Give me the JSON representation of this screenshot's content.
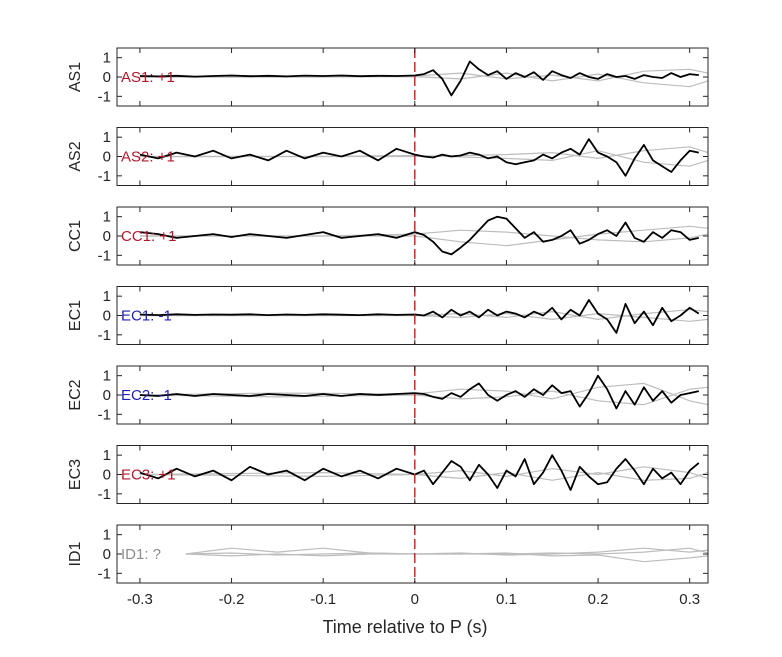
{
  "chart_data": {
    "type": "line",
    "xlabel": "Time relative to P (s)",
    "xlim": [
      -0.325,
      0.32
    ],
    "ylim": [
      -1.5,
      1.5
    ],
    "xticks": [
      -0.3,
      -0.2,
      -0.1,
      0,
      0.1,
      0.2,
      0.3
    ],
    "yticks": [
      -1,
      0,
      1
    ],
    "marker_x": 0,
    "colors": {
      "trace": "#000000",
      "ensemble": "#bdbdbd",
      "marker": "#d62728",
      "positive": "#b2182b",
      "negative": "#1f1fb4",
      "unknown": "#8c8c8c"
    },
    "panels": [
      {
        "name": "AS1",
        "label": "AS1: +1",
        "polarity": "positive",
        "trace": {
          "x": [
            -0.3,
            -0.28,
            -0.26,
            -0.24,
            -0.22,
            -0.2,
            -0.18,
            -0.16,
            -0.14,
            -0.12,
            -0.1,
            -0.08,
            -0.06,
            -0.04,
            -0.02,
            0,
            0.01,
            0.02,
            0.03,
            0.04,
            0.05,
            0.06,
            0.07,
            0.08,
            0.09,
            0.1,
            0.11,
            0.12,
            0.13,
            0.14,
            0.15,
            0.16,
            0.17,
            0.18,
            0.19,
            0.2,
            0.21,
            0.22,
            0.23,
            0.24,
            0.25,
            0.26,
            0.27,
            0.28,
            0.29,
            0.3,
            0.31
          ],
          "y": [
            0.05,
            0.03,
            0.06,
            0.02,
            0.05,
            0.08,
            0.04,
            0.06,
            0.03,
            0.07,
            0.05,
            0.08,
            0.04,
            0.06,
            0.05,
            0.08,
            0.15,
            0.35,
            -0.1,
            -0.95,
            -0.2,
            0.8,
            0.4,
            0.1,
            0.3,
            -0.1,
            0.2,
            0.0,
            0.25,
            -0.15,
            0.3,
            0.1,
            -0.05,
            0.2,
            0.0,
            -0.1,
            0.15,
            0.0,
            0.05,
            -0.1,
            0.1,
            0.0,
            -0.05,
            0.2,
            0.0,
            0.15,
            0.1
          ]
        },
        "ensemble": [
          {
            "x": [
              -0.3,
              -0.1,
              0,
              0.05,
              0.1,
              0.15,
              0.2,
              0.25,
              0.3,
              0.32
            ],
            "y": [
              0,
              0,
              0.02,
              -0.1,
              0.2,
              -0.2,
              0.15,
              -0.3,
              -0.5,
              -0.2
            ]
          },
          {
            "x": [
              -0.3,
              -0.1,
              0,
              0.05,
              0.1,
              0.15,
              0.2,
              0.25,
              0.3,
              0.32
            ],
            "y": [
              0,
              0,
              0.05,
              0.2,
              -0.1,
              0.1,
              -0.2,
              0.3,
              0.4,
              0.2
            ]
          }
        ]
      },
      {
        "name": "AS2",
        "label": "AS2: +1",
        "polarity": "positive",
        "trace": {
          "x": [
            -0.3,
            -0.28,
            -0.26,
            -0.24,
            -0.22,
            -0.2,
            -0.18,
            -0.16,
            -0.14,
            -0.12,
            -0.1,
            -0.08,
            -0.06,
            -0.04,
            -0.02,
            0,
            0.01,
            0.02,
            0.03,
            0.04,
            0.05,
            0.06,
            0.07,
            0.08,
            0.09,
            0.1,
            0.11,
            0.12,
            0.13,
            0.14,
            0.15,
            0.16,
            0.17,
            0.18,
            0.19,
            0.2,
            0.21,
            0.22,
            0.23,
            0.24,
            0.25,
            0.26,
            0.27,
            0.28,
            0.29,
            0.3,
            0.31
          ],
          "y": [
            0.1,
            -0.1,
            0.2,
            0.0,
            0.3,
            -0.1,
            0.1,
            -0.2,
            0.3,
            -0.1,
            0.2,
            0.0,
            0.3,
            -0.2,
            0.4,
            0.1,
            0.0,
            -0.05,
            0.1,
            0.0,
            0.05,
            0.2,
            0.1,
            -0.1,
            0.0,
            -0.3,
            -0.4,
            -0.3,
            -0.2,
            0.1,
            -0.1,
            0.2,
            0.4,
            0.1,
            0.9,
            0.2,
            0.0,
            -0.3,
            -1.0,
            -0.1,
            0.6,
            -0.2,
            -0.5,
            -0.8,
            -0.2,
            0.3,
            0.2
          ]
        },
        "ensemble": [
          {
            "x": [
              -0.3,
              -0.1,
              0,
              0.1,
              0.15,
              0.2,
              0.25,
              0.3,
              0.32
            ],
            "y": [
              0,
              0,
              0,
              0.1,
              0.2,
              -0.1,
              0.3,
              0.5,
              0.2
            ]
          },
          {
            "x": [
              -0.3,
              -0.1,
              0,
              0.1,
              0.15,
              0.2,
              0.25,
              0.3,
              0.32
            ],
            "y": [
              0,
              0,
              0.05,
              -0.1,
              -0.2,
              0.3,
              -0.3,
              -0.5,
              -0.2
            ]
          }
        ]
      },
      {
        "name": "CC1",
        "label": "CC1: +1",
        "polarity": "positive",
        "trace": {
          "x": [
            -0.3,
            -0.28,
            -0.26,
            -0.24,
            -0.22,
            -0.2,
            -0.18,
            -0.16,
            -0.14,
            -0.12,
            -0.1,
            -0.08,
            -0.06,
            -0.04,
            -0.02,
            0,
            0.01,
            0.02,
            0.03,
            0.04,
            0.05,
            0.06,
            0.07,
            0.08,
            0.09,
            0.1,
            0.11,
            0.12,
            0.13,
            0.14,
            0.15,
            0.16,
            0.17,
            0.18,
            0.19,
            0.2,
            0.21,
            0.22,
            0.23,
            0.24,
            0.25,
            0.26,
            0.27,
            0.28,
            0.29,
            0.3,
            0.31
          ],
          "y": [
            0.2,
            0.1,
            -0.1,
            0.0,
            0.1,
            -0.05,
            0.1,
            0.0,
            -0.1,
            0.05,
            0.2,
            -0.1,
            0.0,
            0.1,
            -0.1,
            0.2,
            0.05,
            -0.3,
            -0.8,
            -0.95,
            -0.6,
            -0.2,
            0.3,
            0.8,
            1.0,
            0.9,
            0.4,
            -0.1,
            0.2,
            -0.3,
            -0.2,
            0.0,
            0.3,
            -0.4,
            -0.2,
            0.1,
            0.3,
            0.0,
            0.7,
            -0.1,
            -0.3,
            0.2,
            -0.1,
            0.3,
            0.2,
            -0.2,
            -0.1
          ]
        },
        "ensemble": [
          {
            "x": [
              -0.3,
              -0.1,
              0,
              0.05,
              0.1,
              0.15,
              0.2,
              0.25,
              0.3,
              0.32
            ],
            "y": [
              0,
              0,
              0,
              -0.3,
              -0.5,
              -0.2,
              0.1,
              0.3,
              0.5,
              0.4
            ]
          },
          {
            "x": [
              -0.3,
              -0.1,
              0,
              0.05,
              0.1,
              0.15,
              0.2,
              0.25,
              0.3,
              0.32
            ],
            "y": [
              0,
              0,
              0.1,
              0.3,
              0.2,
              0.0,
              -0.2,
              -0.3,
              -0.1,
              0.1
            ]
          }
        ]
      },
      {
        "name": "EC1",
        "label": "EC1: -1",
        "polarity": "negative",
        "trace": {
          "x": [
            -0.3,
            -0.28,
            -0.26,
            -0.24,
            -0.22,
            -0.2,
            -0.18,
            -0.16,
            -0.14,
            -0.12,
            -0.1,
            -0.08,
            -0.06,
            -0.04,
            -0.02,
            0,
            0.01,
            0.02,
            0.03,
            0.04,
            0.05,
            0.06,
            0.07,
            0.08,
            0.09,
            0.1,
            0.11,
            0.12,
            0.13,
            0.14,
            0.15,
            0.16,
            0.17,
            0.18,
            0.19,
            0.2,
            0.21,
            0.22,
            0.23,
            0.24,
            0.25,
            0.26,
            0.27,
            0.28,
            0.29,
            0.3,
            0.31
          ],
          "y": [
            0.05,
            0.02,
            0.06,
            0.03,
            0.05,
            0.04,
            0.06,
            0.02,
            0.05,
            0.03,
            0.06,
            0.04,
            0.02,
            0.06,
            0.03,
            0.05,
            0.0,
            0.2,
            -0.1,
            0.3,
            0.0,
            0.2,
            -0.1,
            0.3,
            0.0,
            0.2,
            0.1,
            -0.1,
            0.2,
            0.0,
            0.4,
            -0.2,
            0.3,
            0.0,
            0.8,
            0.1,
            -0.2,
            -0.9,
            0.6,
            -0.4,
            0.2,
            -0.5,
            0.4,
            -0.3,
            0.0,
            0.4,
            0.1
          ]
        },
        "ensemble": [
          {
            "x": [
              -0.3,
              -0.1,
              0,
              0.05,
              0.1,
              0.15,
              0.2,
              0.25,
              0.3,
              0.32
            ],
            "y": [
              0,
              0,
              0,
              0.1,
              -0.1,
              0.2,
              -0.2,
              0.1,
              0.3,
              0.2
            ]
          },
          {
            "x": [
              -0.3,
              -0.1,
              0,
              0.05,
              0.1,
              0.15,
              0.2,
              0.25,
              0.3,
              0.32
            ],
            "y": [
              0,
              0,
              0,
              -0.1,
              0.1,
              -0.2,
              0.1,
              -0.1,
              -0.3,
              -0.2
            ]
          }
        ]
      },
      {
        "name": "EC2",
        "label": "EC2: -1",
        "polarity": "negative",
        "trace": {
          "x": [
            -0.3,
            -0.28,
            -0.26,
            -0.24,
            -0.22,
            -0.2,
            -0.18,
            -0.16,
            -0.14,
            -0.12,
            -0.1,
            -0.08,
            -0.06,
            -0.04,
            -0.02,
            0,
            0.01,
            0.02,
            0.03,
            0.04,
            0.05,
            0.06,
            0.07,
            0.08,
            0.09,
            0.1,
            0.11,
            0.12,
            0.13,
            0.14,
            0.15,
            0.16,
            0.17,
            0.18,
            0.19,
            0.2,
            0.21,
            0.22,
            0.23,
            0.24,
            0.25,
            0.26,
            0.27,
            0.28,
            0.29,
            0.3,
            0.31
          ],
          "y": [
            0.0,
            -0.05,
            0.05,
            -0.05,
            0.05,
            0.0,
            -0.05,
            0.05,
            0.0,
            -0.05,
            0.05,
            -0.05,
            0.05,
            0.0,
            0.05,
            0.1,
            0.05,
            -0.1,
            -0.2,
            0.1,
            -0.1,
            0.3,
            0.6,
            0.0,
            -0.3,
            0.0,
            0.2,
            -0.1,
            0.3,
            0.0,
            0.5,
            0.1,
            0.2,
            -0.6,
            0.1,
            1.0,
            0.3,
            -0.7,
            0.2,
            -0.5,
            0.4,
            -0.3,
            0.2,
            -0.4,
            0.0,
            0.1,
            0.2
          ]
        },
        "ensemble": [
          {
            "x": [
              -0.3,
              -0.15,
              0,
              0.05,
              0.1,
              0.15,
              0.2,
              0.25,
              0.3,
              0.32
            ],
            "y": [
              0,
              0.1,
              0.05,
              0.3,
              0.2,
              -0.2,
              0.4,
              0.6,
              -0.3,
              -0.5
            ]
          },
          {
            "x": [
              -0.3,
              -0.15,
              0,
              0.05,
              0.1,
              0.15,
              0.2,
              0.25,
              0.3,
              0.32
            ],
            "y": [
              0,
              -0.1,
              0,
              -0.2,
              -0.1,
              0.2,
              -0.3,
              -0.5,
              0.3,
              0.4
            ]
          }
        ]
      },
      {
        "name": "EC3",
        "label": "EC3: +1",
        "polarity": "positive",
        "trace": {
          "x": [
            -0.3,
            -0.28,
            -0.26,
            -0.24,
            -0.22,
            -0.2,
            -0.18,
            -0.16,
            -0.14,
            -0.12,
            -0.1,
            -0.08,
            -0.06,
            -0.04,
            -0.02,
            0,
            0.01,
            0.02,
            0.03,
            0.04,
            0.05,
            0.06,
            0.07,
            0.08,
            0.09,
            0.1,
            0.11,
            0.12,
            0.13,
            0.14,
            0.15,
            0.16,
            0.17,
            0.18,
            0.19,
            0.2,
            0.21,
            0.22,
            0.23,
            0.24,
            0.25,
            0.26,
            0.27,
            0.28,
            0.29,
            0.3,
            0.31
          ],
          "y": [
            0.1,
            -0.2,
            0.3,
            -0.1,
            0.2,
            -0.3,
            0.4,
            0.0,
            0.2,
            -0.3,
            0.3,
            -0.1,
            0.2,
            -0.2,
            0.3,
            0.0,
            0.2,
            -0.5,
            0.1,
            0.7,
            0.4,
            -0.3,
            0.5,
            0.0,
            -0.7,
            0.2,
            -0.1,
            0.8,
            -0.5,
            0.1,
            1.0,
            0.2,
            -0.8,
            0.4,
            -0.1,
            -0.5,
            -0.4,
            0.3,
            0.8,
            0.2,
            -0.5,
            0.3,
            -0.2,
            0.1,
            -0.5,
            0.2,
            0.6
          ]
        },
        "ensemble": [
          {
            "x": [
              -0.3,
              -0.1,
              0,
              0.05,
              0.1,
              0.15,
              0.2,
              0.25,
              0.3,
              0.32
            ],
            "y": [
              0,
              0.1,
              0,
              0.2,
              -0.1,
              0.3,
              0.0,
              0.4,
              0.1,
              -0.2
            ]
          },
          {
            "x": [
              -0.3,
              -0.1,
              0,
              0.05,
              0.1,
              0.15,
              0.2,
              0.25,
              0.3,
              0.32
            ],
            "y": [
              0,
              -0.1,
              0,
              -0.2,
              0.1,
              -0.3,
              0.1,
              -0.3,
              -0.2,
              0.1
            ]
          }
        ]
      },
      {
        "name": "ID1",
        "label": "ID1: ?",
        "polarity": "unknown",
        "trace": null,
        "ensemble": [
          {
            "x": [
              -0.25,
              -0.2,
              -0.15,
              -0.1,
              -0.05,
              0,
              0.05,
              0.1,
              0.15,
              0.2,
              0.25,
              0.3,
              0.32
            ],
            "y": [
              0,
              0.3,
              0.1,
              0.3,
              0.05,
              0,
              0.05,
              -0.05,
              0,
              0.1,
              0.3,
              0.1,
              0.2
            ]
          },
          {
            "x": [
              -0.25,
              -0.2,
              -0.15,
              -0.1,
              -0.05,
              0,
              0.05,
              0.1,
              0.15,
              0.2,
              0.25,
              0.3,
              0.32
            ],
            "y": [
              0,
              -0.1,
              0.0,
              -0.1,
              0.0,
              0,
              0.0,
              0.05,
              -0.1,
              -0.05,
              -0.4,
              -0.2,
              -0.1
            ]
          },
          {
            "x": [
              -0.25,
              -0.2,
              -0.15,
              -0.1,
              -0.05,
              0,
              0.05,
              0.1,
              0.15,
              0.2,
              0.25,
              0.3,
              0.32
            ],
            "y": [
              0,
              0.05,
              -0.05,
              0.0,
              0.05,
              0,
              0.0,
              0.0,
              0.05,
              0.0,
              0.1,
              0.3,
              0.05
            ]
          }
        ]
      }
    ]
  }
}
